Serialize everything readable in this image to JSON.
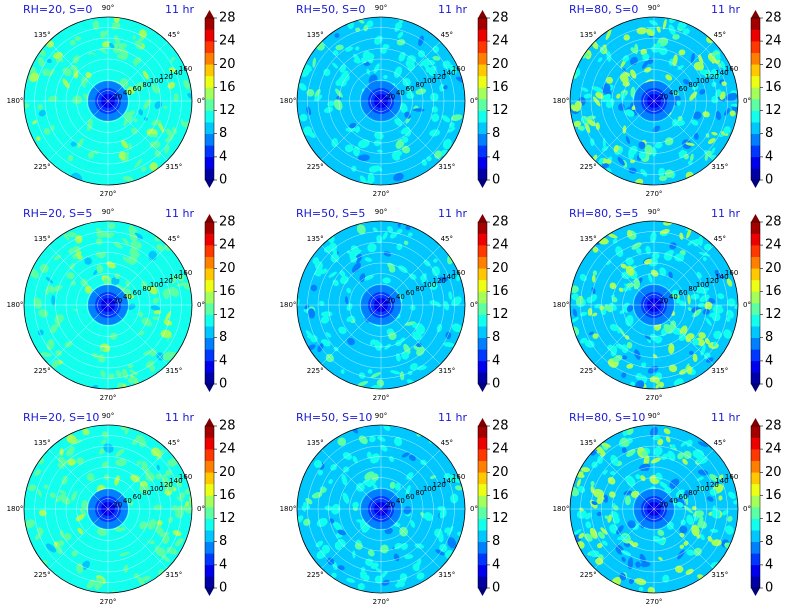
{
  "figure": {
    "colormap": "jet",
    "colors": {
      "title": "#1a1ad6",
      "grid": "#ffffff",
      "background": "#ffffff"
    },
    "levels": [
      0,
      2,
      4,
      6,
      8,
      10,
      12,
      14,
      16,
      18,
      20,
      22,
      24,
      26,
      28
    ],
    "colorbar_ticks": [
      "0",
      "4",
      "8",
      "12",
      "16",
      "20",
      "24",
      "28"
    ],
    "angle_labels": [
      "0°",
      "45°",
      "90°",
      "135°",
      "180°",
      "225°",
      "270°",
      "315°"
    ],
    "radial_ticks": [
      "20",
      "40",
      "60",
      "80",
      "100",
      "120",
      "140",
      "160"
    ]
  },
  "chart_data": [
    {
      "type": "heatmap",
      "projection": "polar",
      "title_left": "RH=20, S=0",
      "title_right": "11 hr",
      "rlim": [
        0,
        160
      ],
      "background_level": 11,
      "center_level": 5,
      "field": {
        "seed": 11,
        "density": 0.6,
        "mean_level": 12,
        "high_level": 15,
        "low_level": 9
      }
    },
    {
      "type": "heatmap",
      "projection": "polar",
      "title_left": "RH=50, S=0",
      "title_right": "11 hr",
      "rlim": [
        0,
        160
      ],
      "background_level": 9,
      "center_level": 5,
      "field": {
        "seed": 21,
        "density": 0.6,
        "mean_level": 10,
        "high_level": 13,
        "low_level": 6
      }
    },
    {
      "type": "heatmap",
      "projection": "polar",
      "title_left": "RH=80, S=0",
      "title_right": "11 hr",
      "rlim": [
        0,
        160
      ],
      "background_level": 9,
      "center_level": 5,
      "field": {
        "seed": 31,
        "density": 0.9,
        "mean_level": 11,
        "high_level": 16,
        "low_level": 6
      }
    },
    {
      "type": "heatmap",
      "projection": "polar",
      "title_left": "RH=20, S=5",
      "title_right": "11 hr",
      "rlim": [
        0,
        160
      ],
      "background_level": 11,
      "center_level": 5,
      "field": {
        "seed": 12,
        "density": 0.6,
        "mean_level": 12,
        "high_level": 15,
        "low_level": 9
      }
    },
    {
      "type": "heatmap",
      "projection": "polar",
      "title_left": "RH=50, S=5",
      "title_right": "11 hr",
      "rlim": [
        0,
        160
      ],
      "background_level": 9,
      "center_level": 5,
      "field": {
        "seed": 22,
        "density": 0.6,
        "mean_level": 10,
        "high_level": 13,
        "low_level": 6
      }
    },
    {
      "type": "heatmap",
      "projection": "polar",
      "title_left": "RH=80, S=5",
      "title_right": "11 hr",
      "rlim": [
        0,
        160
      ],
      "background_level": 9,
      "center_level": 5,
      "field": {
        "seed": 32,
        "density": 0.9,
        "mean_level": 11,
        "high_level": 16,
        "low_level": 6
      }
    },
    {
      "type": "heatmap",
      "projection": "polar",
      "title_left": "RH=20, S=10",
      "title_right": "11 hr",
      "rlim": [
        0,
        160
      ],
      "background_level": 11,
      "center_level": 5,
      "field": {
        "seed": 13,
        "density": 0.6,
        "mean_level": 12,
        "high_level": 15,
        "low_level": 9
      }
    },
    {
      "type": "heatmap",
      "projection": "polar",
      "title_left": "RH=50, S=10",
      "title_right": "11 hr",
      "rlim": [
        0,
        160
      ],
      "background_level": 9,
      "center_level": 5,
      "field": {
        "seed": 23,
        "density": 0.6,
        "mean_level": 10,
        "high_level": 13,
        "low_level": 6
      }
    },
    {
      "type": "heatmap",
      "projection": "polar",
      "title_left": "RH=80, S=10",
      "title_right": "11 hr",
      "rlim": [
        0,
        160
      ],
      "background_level": 9,
      "center_level": 5,
      "field": {
        "seed": 33,
        "density": 0.9,
        "mean_level": 11,
        "high_level": 16,
        "low_level": 6
      }
    }
  ]
}
